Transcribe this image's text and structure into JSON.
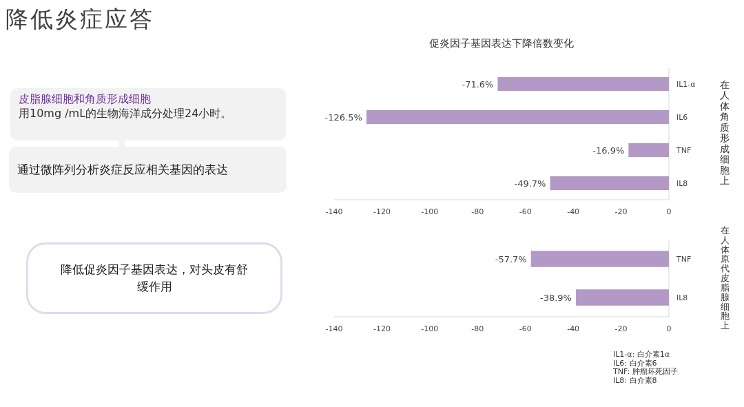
{
  "chart_data": [
    {
      "type": "other",
      "title": "降低炎症应答",
      "annotations": [
        "皮脂腺细胞和角质形成细胞",
        "用10mg /mL的生物海洋成分处理24小时。",
        "通过微阵列分析炎症反应相关基因的表达",
        "降低促炎因子基因表达，对头皮有舒缓作用",
        "IL1-α: 白介素1α",
        "IL6: 白介素6",
        "TNF: 肿瘤坏死因子",
        "IL8: 白介素8"
      ]
    },
    {
      "type": "bar",
      "orientation": "horizontal",
      "title": "促炎因子基因表达下降倍数变化",
      "ylabel": "在人体角质形成细胞上",
      "categories": [
        "IL1-α",
        "IL6",
        "TNF",
        "IL8"
      ],
      "values": [
        -71.6,
        -126.5,
        -16.9,
        -49.7
      ],
      "value_labels": [
        "-71.6%",
        "-126.5%",
        "-16.9%",
        "-49.7%"
      ],
      "color": "#b299c6",
      "xlim": [
        -140,
        0
      ],
      "xticks": [
        -140,
        -120,
        -100,
        -80,
        -60,
        -40,
        -20,
        0
      ]
    },
    {
      "type": "bar",
      "orientation": "horizontal",
      "ylabel": "在人体原代皮脂腺细胞上",
      "categories": [
        "TNF",
        "IL8"
      ],
      "values": [
        -57.7,
        -38.9
      ],
      "value_labels": [
        "-57.7%",
        "-38.9%"
      ],
      "color": "#b299c6",
      "xlim": [
        -140,
        0
      ],
      "xticks": [
        -140,
        -120,
        -100,
        -80,
        -60,
        -40,
        -20,
        0
      ]
    }
  ]
}
